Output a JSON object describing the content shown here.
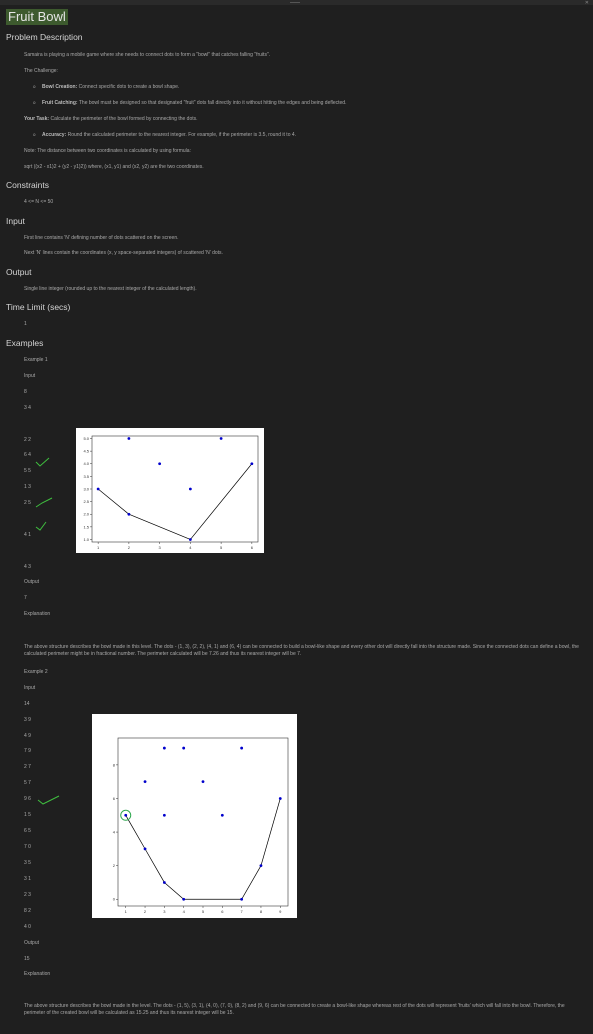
{
  "title": "Fruit Bowl",
  "sections": {
    "problem": "Problem Description",
    "constraints": "Constraints",
    "input": "Input",
    "output": "Output",
    "time_limit": "Time Limit (secs)",
    "examples": "Examples"
  },
  "problem": {
    "intro": "Samaira is playing a mobile game where she needs to connect dots to form a \"bowl\" that catches falling \"fruits\".",
    "challenge": "The Challenge:",
    "b1_label": "Bowl Creation:",
    "b1_text": " Connect specific dots to create a bowl shape.",
    "b2_label": "Fruit Catching:",
    "b2_text": " The bowl must be designed so that designated \"fruit\" dots fall directly into it without hitting the edges and being deflected.",
    "task_label": "Your Task:",
    "task_text": " Calculate the perimeter of the bowl formed by connecting the dots.",
    "b3_label": "Accuracy:",
    "b3_text": " Round the calculated perimeter to the nearest integer. For example, if the perimeter is 3.5, round it to 4.",
    "note": "Note: The distance between two coordinates is calculated by using formula:",
    "formula": "sqrt ((x2 - x1)2 + (y2 - y1)2)) where, (x1, y1) and (x2, y2) are the two coordinates."
  },
  "constraints_text": "4 <= N <= 50",
  "input_text1": "First line contains 'N' defining number of dots scattered on the screen.",
  "input_text2": "Next 'N' lines contain the coordinates (x, y space-separated integers) of scattered 'N' dots.",
  "output_text": "Single line integer (rounded up to the nearest integer of the calculated length).",
  "time_limit_value": "1",
  "example1": {
    "label": "Example 1",
    "input_label": "Input",
    "n": "8",
    "lines": [
      "3 4",
      "2 2",
      "6 4",
      "5 5",
      "1 3",
      "2 5",
      "4 1",
      "4 3"
    ],
    "output_label": "Output",
    "output": "7",
    "explanation_label": "Explanation",
    "explanation": "The above structure describes the bowl made in this level. The dots - (1, 3), (2, 2), (4, 1) and (6, 4) can be connected to build a bowl-like shape and every other dot will directly fall into the structure made. Since the connected dots can define a bowl, the calculated perimeter might be in fractional number. The perimeter calculated will be 7.26 and thus its nearest integer will be 7."
  },
  "example2": {
    "label": "Example 2",
    "input_label": "Input",
    "n": "14",
    "lines": [
      "3 9",
      "4 9",
      "7 9",
      "2 7",
      "5 7",
      "9 6",
      "1 5",
      "6 5",
      "7 0",
      "3 5",
      "3 1",
      "2 3",
      "8 2",
      "4 0"
    ],
    "output_label": "Output",
    "output": "15",
    "explanation_label": "Explanation",
    "explanation": "The above structure describes the bowl made in the level. The dots - (1, 5), (3, 1), (4, 0), (7, 0), (8, 2) and (9, 6) can be connected to create a bowl-like shape whereas rest of the dots will represent 'fruits' which will fall into the bowl. Therefore, the perimeter of the created bowl will be calculated as 15.25 and thus its nearest integer will be 15."
  },
  "chart_data": [
    {
      "type": "scatter",
      "x_ticks": [
        "1",
        "2",
        "3",
        "4",
        "5",
        "6"
      ],
      "y_ticks": [
        "1.0",
        "1.5",
        "2.0",
        "2.5",
        "3.0",
        "3.5",
        "4.0",
        "4.5",
        "5.0"
      ],
      "xlim": [
        0.8,
        6.2
      ],
      "ylim": [
        0.9,
        5.1
      ],
      "points": [
        [
          3,
          4
        ],
        [
          2,
          2
        ],
        [
          6,
          4
        ],
        [
          5,
          5
        ],
        [
          1,
          3
        ],
        [
          2,
          5
        ],
        [
          4,
          1
        ],
        [
          4,
          3
        ]
      ],
      "bowl": [
        [
          1,
          3
        ],
        [
          2,
          2
        ],
        [
          4,
          1
        ],
        [
          6,
          4
        ]
      ],
      "colors": {
        "point": "#0000cc",
        "line": "#000000"
      }
    },
    {
      "type": "scatter",
      "x_ticks": [
        "1",
        "2",
        "3",
        "4",
        "5",
        "6",
        "7",
        "8",
        "9"
      ],
      "y_ticks": [
        "0",
        "2",
        "4",
        "6",
        "8"
      ],
      "xlim": [
        0.6,
        9.4
      ],
      "ylim": [
        -0.4,
        9.6
      ],
      "points": [
        [
          3,
          9
        ],
        [
          4,
          9
        ],
        [
          7,
          9
        ],
        [
          2,
          7
        ],
        [
          5,
          7
        ],
        [
          9,
          6
        ],
        [
          1,
          5
        ],
        [
          6,
          5
        ],
        [
          7,
          0
        ],
        [
          3,
          5
        ],
        [
          3,
          1
        ],
        [
          2,
          3
        ],
        [
          8,
          2
        ],
        [
          4,
          0
        ]
      ],
      "bowl": [
        [
          1,
          5
        ],
        [
          2,
          3
        ],
        [
          3,
          1
        ],
        [
          4,
          0
        ],
        [
          7,
          0
        ],
        [
          8,
          2
        ],
        [
          9,
          6
        ]
      ],
      "colors": {
        "point": "#0000cc",
        "line": "#000000"
      }
    }
  ]
}
